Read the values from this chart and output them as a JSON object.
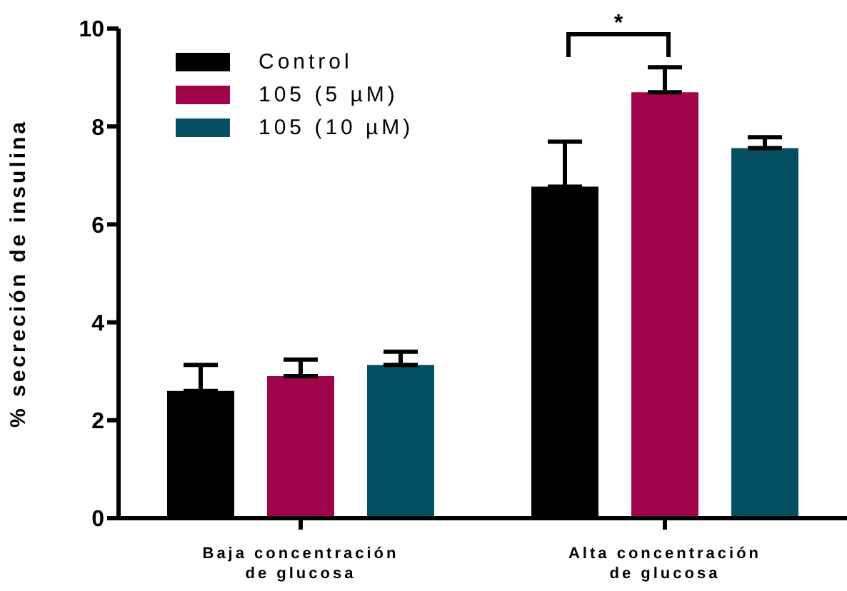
{
  "chart_data": {
    "type": "bar",
    "ylabel": "% secreción de insulina",
    "categories": [
      "Baja concentración de glucosa",
      "Alta concentración de glucosa"
    ],
    "series": [
      {
        "name": "Control",
        "color": "#000000",
        "values": [
          2.6,
          6.77
        ],
        "errors": [
          [
            2.6,
            3.13
          ],
          [
            6.77,
            7.69
          ]
        ]
      },
      {
        "name": "105 (5 µM)",
        "color": "#a0044b",
        "values": [
          2.9,
          8.7
        ],
        "errors": [
          [
            2.9,
            3.24
          ],
          [
            8.7,
            9.21
          ]
        ]
      },
      {
        "name": "105 (10 µM)",
        "color": "#054f63",
        "values": [
          3.13,
          7.56
        ],
        "errors": [
          [
            3.13,
            3.4
          ],
          [
            7.56,
            7.78
          ]
        ]
      }
    ],
    "ylim": [
      0,
      10
    ],
    "yticks": [
      0,
      2,
      4,
      6,
      8,
      10
    ],
    "grid": false,
    "legend": "top left",
    "annotations": [
      "*"
    ]
  }
}
